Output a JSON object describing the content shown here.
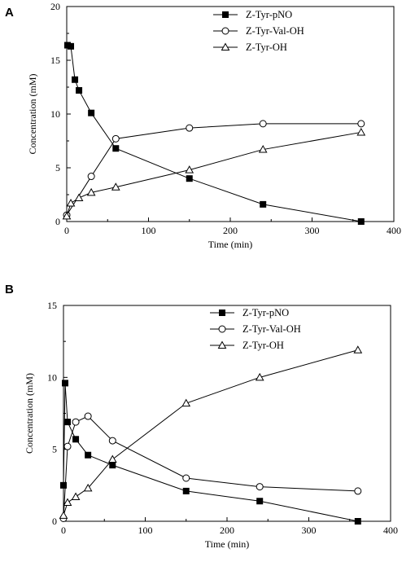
{
  "chart_data": [
    {
      "panel": "A",
      "type": "line",
      "xlabel": "Time (min)",
      "ylabel": "Concentration (mM)",
      "xlim": [
        0,
        400
      ],
      "ylim": [
        0,
        20
      ],
      "xticks": [
        0,
        100,
        200,
        300,
        400
      ],
      "yticks": [
        0,
        5,
        10,
        15,
        20
      ],
      "legend_position": "top-right",
      "series": [
        {
          "name": "Z-Tyr-pNO",
          "marker": "filled-square",
          "x": [
            1,
            5,
            10,
            15,
            30,
            60,
            150,
            240,
            360
          ],
          "y": [
            16.4,
            16.3,
            13.2,
            12.2,
            10.1,
            6.8,
            4.0,
            1.6,
            0.0
          ]
        },
        {
          "name": "Z-Tyr-Val-OH",
          "marker": "open-circle",
          "x": [
            0,
            30,
            60,
            150,
            240,
            360
          ],
          "y": [
            0.6,
            4.2,
            7.7,
            8.7,
            9.1,
            9.1
          ]
        },
        {
          "name": "Z-Tyr-OH",
          "marker": "open-triangle",
          "x": [
            0,
            5,
            15,
            30,
            60,
            150,
            240,
            360
          ],
          "y": [
            0.5,
            1.7,
            2.2,
            2.7,
            3.2,
            4.8,
            6.7,
            8.3
          ]
        }
      ]
    },
    {
      "panel": "B",
      "type": "line",
      "xlabel": "Time (min)",
      "ylabel": "Concentration (mM)",
      "xlim": [
        0,
        400
      ],
      "ylim": [
        0,
        15
      ],
      "xticks": [
        0,
        100,
        200,
        300,
        400
      ],
      "yticks": [
        0,
        5,
        10,
        15
      ],
      "legend_position": "top-right",
      "series": [
        {
          "name": "Z-Tyr-pNO",
          "marker": "filled-square",
          "x": [
            0,
            2,
            5,
            15,
            30,
            60,
            150,
            240,
            360
          ],
          "y": [
            2.5,
            9.6,
            6.9,
            5.7,
            4.6,
            3.9,
            2.1,
            1.4,
            0.0
          ]
        },
        {
          "name": "Z-Tyr-Val-OH",
          "marker": "open-circle",
          "x": [
            0,
            5,
            15,
            30,
            60,
            150,
            240,
            360
          ],
          "y": [
            0.2,
            5.2,
            6.9,
            7.3,
            5.6,
            3.0,
            2.4,
            2.1
          ]
        },
        {
          "name": "Z-Tyr-OH",
          "marker": "open-triangle",
          "x": [
            0,
            5,
            15,
            30,
            60,
            150,
            240,
            360
          ],
          "y": [
            0.4,
            1.3,
            1.7,
            2.3,
            4.3,
            8.2,
            10.0,
            11.9
          ]
        }
      ]
    }
  ]
}
